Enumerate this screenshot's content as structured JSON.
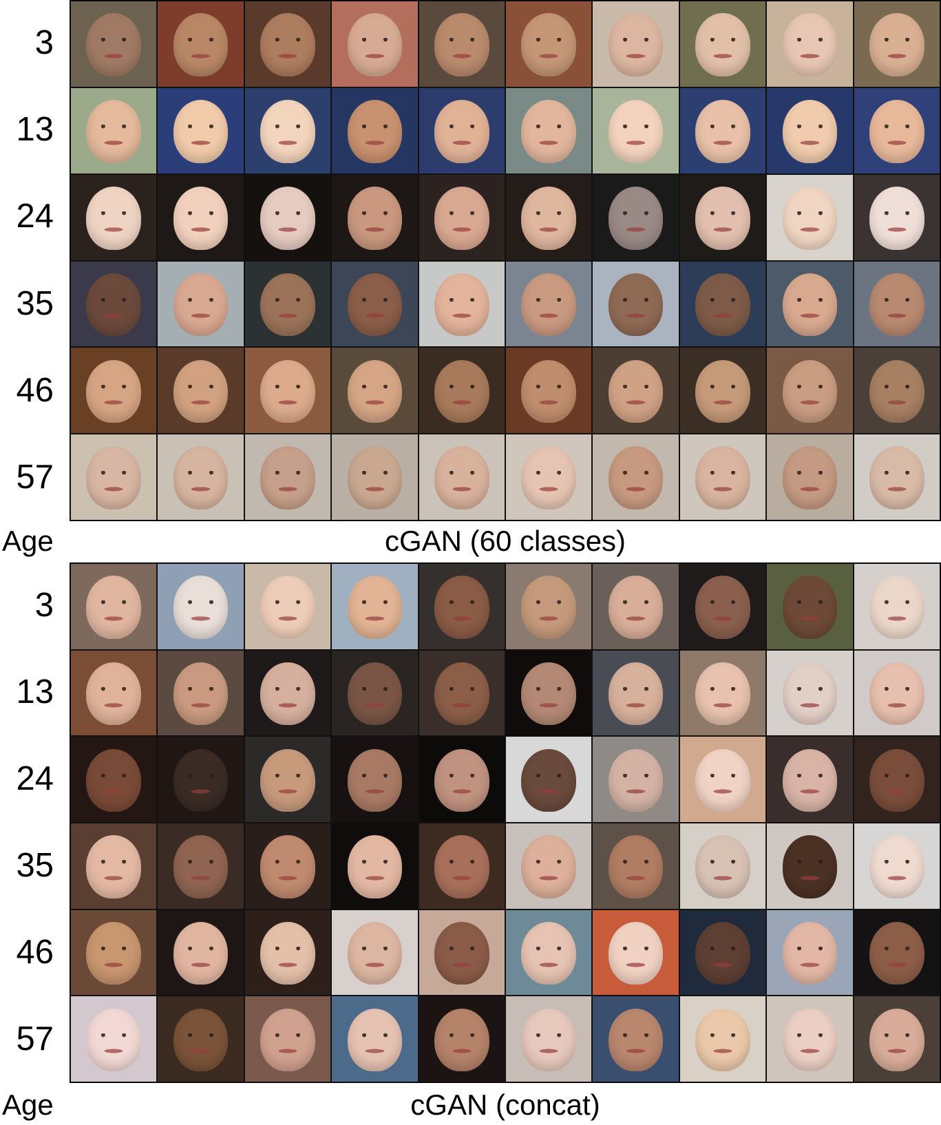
{
  "panels": [
    {
      "title": "cGAN (60 classes)",
      "axis_label": "Age",
      "rows": [
        {
          "age": "3",
          "skins": [
            "#a07a64",
            "#b98766",
            "#ad7d5f",
            "#d7ab93",
            "#b98a6c",
            "#c49676",
            "#dcb6a1",
            "#e2c0a8",
            "#e7c6b3",
            "#d9b092"
          ],
          "bgs": [
            "#6d6250",
            "#7e3d2a",
            "#5a3a2b",
            "#b36e5c",
            "#5a4a3e",
            "#8a5038",
            "#c9b9a8",
            "#6f6f50",
            "#c9b29c",
            "#7a6a52"
          ]
        },
        {
          "age": "13",
          "skins": [
            "#e4b99c",
            "#f0caa9",
            "#f3d4bc",
            "#c8916f",
            "#e2b297",
            "#e2b69d",
            "#f3d3be",
            "#e8c1a8",
            "#f0cbad",
            "#e8b89a"
          ],
          "bgs": [
            "#9aaa8a",
            "#2b3e7a",
            "#2d3f6d",
            "#253663",
            "#2b3c6d",
            "#7a8a86",
            "#a9b59a",
            "#2d3f71",
            "#27386b",
            "#304078"
          ]
        },
        {
          "age": "24",
          "skins": [
            "#efd4c3",
            "#f1d0bd",
            "#e5cbc0",
            "#c9987e",
            "#d9a891",
            "#dfb69e",
            "#9a8a86",
            "#e2bfae",
            "#f0d6c2",
            "#f0dfd8"
          ],
          "bgs": [
            "#2b221e",
            "#1e1916",
            "#14110f",
            "#1d1816",
            "#2c2320",
            "#241c18",
            "#1a1a1a",
            "#1e1b19",
            "#d9d3cd",
            "#3a3331"
          ]
        },
        {
          "age": "35",
          "skins": [
            "#6b4a3c",
            "#d9a890",
            "#9b7359",
            "#8a5e48",
            "#e3b39b",
            "#c99a80",
            "#8f6a55",
            "#7d5b48",
            "#d8a98f",
            "#b88a70"
          ],
          "bgs": [
            "#3a3a4a",
            "#a5aeb3",
            "#2c3133",
            "#3c4656",
            "#c6c9c8",
            "#7b8591",
            "#aab3c0",
            "#2d3d57",
            "#4c5a6a",
            "#6c7482"
          ]
        },
        {
          "age": "46",
          "skins": [
            "#d6a584",
            "#d1a181",
            "#dcab8c",
            "#d5a585",
            "#a87a5c",
            "#c08d6e",
            "#d0a285",
            "#c59a79",
            "#c99d82",
            "#a77f63"
          ],
          "bgs": [
            "#6a4025",
            "#5a3a28",
            "#8c5a3e",
            "#5a4a3a",
            "#3b2c22",
            "#6a3a24",
            "#4d3e33",
            "#3b2e25",
            "#7a5a45",
            "#4a4038"
          ]
        },
        {
          "age": "57",
          "skins": [
            "#d8b6a3",
            "#d7b49f",
            "#c6a08a",
            "#caa890",
            "#d9b29c",
            "#e5c4b1",
            "#c79a80",
            "#d9b5a0",
            "#c49a82",
            "#d8bba7"
          ],
          "bgs": [
            "#ccc0b1",
            "#c9c0b6",
            "#c1b8b0",
            "#b9afa5",
            "#cbc3ba",
            "#d0c6bb",
            "#c2b8ae",
            "#cfc7be",
            "#b8ad9f",
            "#d1ccc6"
          ]
        }
      ]
    },
    {
      "title": "cGAN (concat)",
      "axis_label": "Age",
      "rows": [
        {
          "age": "3",
          "skins": [
            "#e0b6a0",
            "#eaded9",
            "#edcdb8",
            "#e2b394",
            "#8a5b45",
            "#c59a7c",
            "#d8ae98",
            "#8a5f4e",
            "#6e4937",
            "#ebd7c9"
          ],
          "bgs": [
            "#7e6a5c",
            "#8fa0b4",
            "#c9b9a9",
            "#a0b0c0",
            "#35302e",
            "#8a7a70",
            "#6b5f5a",
            "#1f1b1a",
            "#58603f",
            "#d5d0cc"
          ]
        },
        {
          "age": "13",
          "skins": [
            "#dfb29a",
            "#c99a80",
            "#d6b09e",
            "#7a5546",
            "#8b5e48",
            "#b38975",
            "#d7b19c",
            "#e8c2ae",
            "#e2cfc6",
            "#e7bfae"
          ],
          "bgs": [
            "#7a4d34",
            "#5b4a3f",
            "#1e1a19",
            "#2a2522",
            "#3a2e2a",
            "#0f0c0b",
            "#4a4c55",
            "#8f7a6a",
            "#d6d0cc",
            "#d0cbc8"
          ]
        },
        {
          "age": "24",
          "skins": [
            "#7a4a38",
            "#3a2b25",
            "#c79a7c",
            "#a87a64",
            "#c09280",
            "#6a4a3c",
            "#d4b3a5",
            "#f0d3c4",
            "#d9b3a6",
            "#7a4d3b"
          ],
          "bgs": [
            "#241713",
            "#201714",
            "#2b2a28",
            "#171211",
            "#0d0a0a",
            "#d8d8d8",
            "#8f8a86",
            "#d1a98e",
            "#3a2e2c",
            "#32231e"
          ]
        },
        {
          "age": "35",
          "skins": [
            "#e3b9a4",
            "#8f6450",
            "#c08a70",
            "#e3b8a3",
            "#a8705a",
            "#dcb09a",
            "#b07c62",
            "#d8c2b4",
            "#4b3124",
            "#efdad0"
          ],
          "bgs": [
            "#5a3e31",
            "#3b2b25",
            "#2a1e1a",
            "#0f0c0b",
            "#3d2b22",
            "#c8c0ba",
            "#5d5148",
            "#d6cfc8",
            "#cfc7c2",
            "#d8d6d5"
          ]
        },
        {
          "age": "46",
          "skins": [
            "#c8966f",
            "#e1b6a0",
            "#e4c0a9",
            "#ddb6a2",
            "#8a5c48",
            "#e6c3b2",
            "#f1d1c2",
            "#5d3f33",
            "#e2b7a5",
            "#8c5e48"
          ],
          "bgs": [
            "#6a4a36",
            "#1e1614",
            "#2e1f1a",
            "#d8d0cd",
            "#c6a998",
            "#6e8a98",
            "#c85c3a",
            "#1f2a3d",
            "#9aa5b8",
            "#141212"
          ]
        },
        {
          "age": "57",
          "skins": [
            "#f2d8d4",
            "#7a5338",
            "#d1a190",
            "#e6c2b2",
            "#b5826a",
            "#e6c8bd",
            "#b9866e",
            "#ebc8a9",
            "#ebcfc4",
            "#d8ac98"
          ],
          "bgs": [
            "#d4c8cf",
            "#3a2a20",
            "#7a5a4c",
            "#4c6a8a",
            "#1c1412",
            "#c8bdb6",
            "#3a4e70",
            "#d9d0c6",
            "#cfc5bd",
            "#4a4037"
          ]
        }
      ]
    }
  ]
}
